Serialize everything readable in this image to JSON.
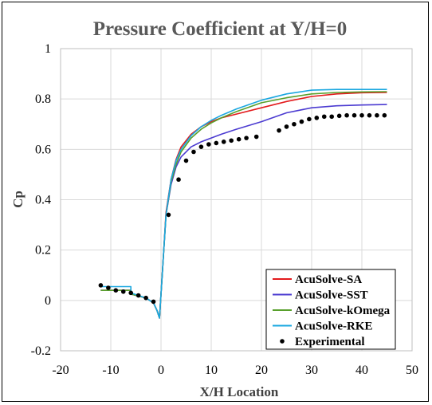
{
  "chart_data": {
    "type": "line",
    "title": "Pressure Coefficient at Y/H=0",
    "xlabel": "X/H Location",
    "ylabel": "Cp",
    "xlim": [
      -20,
      50
    ],
    "ylim": [
      -0.2,
      1
    ],
    "xticks": [
      "-20",
      "-10",
      "0",
      "10",
      "20",
      "30",
      "40",
      "50"
    ],
    "yticks": [
      "-0.2",
      "0",
      "0.2",
      "0.4",
      "0.6",
      "0.8",
      "1"
    ],
    "grid": true,
    "legend_position": "bottom-right",
    "series": [
      {
        "name": "AcuSolve-SA",
        "color": "#e31a1c",
        "style": "line",
        "x": [
          -12,
          -6,
          -6,
          -3,
          -1.5,
          -0.8,
          -0.3,
          0.3,
          1,
          2,
          3,
          4,
          6,
          8,
          10,
          12,
          15,
          20,
          25,
          30,
          35,
          40,
          45
        ],
        "y": [
          0.04,
          0.04,
          0.025,
          0.01,
          -0.01,
          -0.04,
          -0.07,
          0.12,
          0.35,
          0.48,
          0.56,
          0.61,
          0.66,
          0.69,
          0.71,
          0.725,
          0.74,
          0.765,
          0.79,
          0.81,
          0.82,
          0.825,
          0.826
        ]
      },
      {
        "name": "AcuSolve-SST",
        "color": "#4b3bd1",
        "style": "line",
        "x": [
          -12,
          -6,
          -6,
          -3,
          -1.5,
          -0.8,
          -0.3,
          0.3,
          1,
          2,
          3,
          4,
          6,
          8,
          10,
          12,
          15,
          20,
          25,
          30,
          35,
          40,
          45
        ],
        "y": [
          0.04,
          0.04,
          0.025,
          0.01,
          -0.01,
          -0.04,
          -0.07,
          0.12,
          0.34,
          0.46,
          0.53,
          0.57,
          0.61,
          0.63,
          0.645,
          0.66,
          0.68,
          0.71,
          0.745,
          0.765,
          0.773,
          0.776,
          0.778
        ]
      },
      {
        "name": "AcuSolve-kOmega",
        "color": "#58a02c",
        "style": "line",
        "x": [
          -12,
          -6,
          -6,
          -3,
          -1.5,
          -0.8,
          -0.3,
          0.3,
          1,
          2,
          3,
          4,
          6,
          8,
          10,
          12,
          15,
          20,
          25,
          30,
          35,
          40,
          45
        ],
        "y": [
          0.04,
          0.04,
          0.025,
          0.01,
          -0.01,
          -0.04,
          -0.07,
          0.12,
          0.34,
          0.47,
          0.54,
          0.59,
          0.645,
          0.68,
          0.705,
          0.725,
          0.75,
          0.785,
          0.805,
          0.82,
          0.826,
          0.828,
          0.829
        ]
      },
      {
        "name": "AcuSolve-RKE",
        "color": "#1aa7e0",
        "style": "line",
        "x": [
          -12,
          -6,
          -6,
          -3,
          -1.5,
          -0.8,
          -0.3,
          0.3,
          1,
          2,
          3,
          4,
          6,
          8,
          10,
          12,
          15,
          20,
          25,
          30,
          35,
          40,
          45
        ],
        "y": [
          0.055,
          0.055,
          0.03,
          0.01,
          -0.01,
          -0.04,
          -0.07,
          0.12,
          0.34,
          0.48,
          0.555,
          0.6,
          0.655,
          0.69,
          0.715,
          0.735,
          0.76,
          0.795,
          0.82,
          0.835,
          0.838,
          0.838,
          0.838
        ]
      },
      {
        "name": "Experimental",
        "color": "#000000",
        "style": "markers",
        "x": [
          -12,
          -10.5,
          -9,
          -7.5,
          -6,
          -4.5,
          -3,
          -1.5,
          1.5,
          3.5,
          5,
          6.5,
          8,
          9.5,
          11,
          12.5,
          14,
          15.5,
          17,
          19,
          23.5,
          25,
          26.5,
          28,
          29.5,
          31,
          32.5,
          34,
          35.5,
          37,
          38.5,
          40,
          41.5,
          43,
          44.5
        ],
        "y": [
          0.06,
          0.05,
          0.04,
          0.035,
          0.03,
          0.02,
          0.01,
          -0.005,
          0.34,
          0.48,
          0.555,
          0.59,
          0.61,
          0.62,
          0.625,
          0.63,
          0.635,
          0.64,
          0.645,
          0.65,
          0.675,
          0.69,
          0.7,
          0.71,
          0.72,
          0.725,
          0.73,
          0.73,
          0.733,
          0.735,
          0.735,
          0.735,
          0.735,
          0.735,
          0.735
        ]
      }
    ]
  }
}
